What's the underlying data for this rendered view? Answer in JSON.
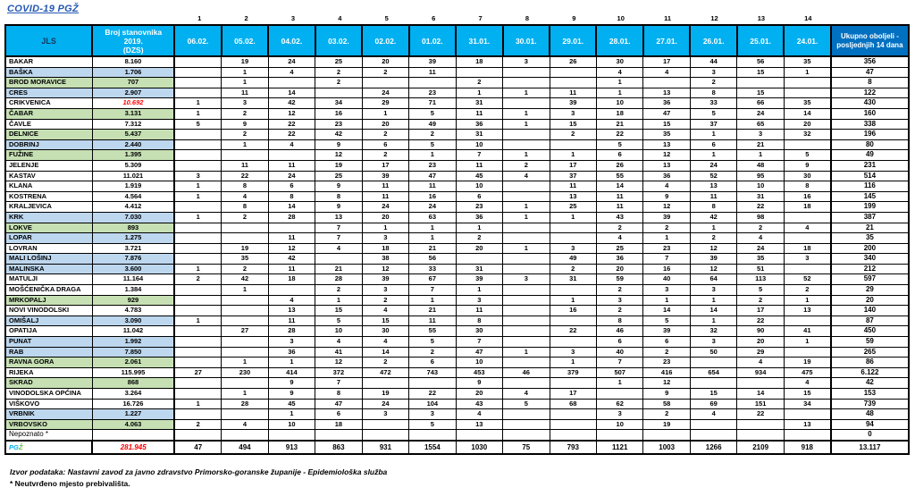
{
  "title": "COVID-19  PGŽ",
  "colors": {
    "header_bg": "#00b0f0",
    "header_total_bg": "#0070c0",
    "row_blue": "#bdd7ee",
    "row_green": "#c6e0b4",
    "red": "#ff0000",
    "title_color": "#2458b3",
    "jls_text": "#17375e",
    "pgz_blue": "#00aeef",
    "pgz_green": "#6cbe45"
  },
  "header": {
    "jls": "JLS",
    "population_lines": [
      "Broj stanovnika",
      "2019.",
      "(DZS)"
    ],
    "day_numbers": [
      "1",
      "2",
      "3",
      "4",
      "5",
      "6",
      "7",
      "8",
      "9",
      "10",
      "11",
      "12",
      "13",
      "14"
    ],
    "dates": [
      "06.02.",
      "05.02.",
      "04.02.",
      "03.02.",
      "02.02.",
      "01.02.",
      "31.01.",
      "30.01.",
      "29.01.",
      "28.01.",
      "27.01.",
      "26.01.",
      "25.01.",
      "24.01."
    ],
    "total_label": "Ukupno oboljeli - posljednjih 14 dana"
  },
  "rows": [
    {
      "name": "BAKAR",
      "pop": "8.160",
      "shade": "w",
      "values": [
        "",
        "19",
        "24",
        "25",
        "20",
        "39",
        "18",
        "3",
        "26",
        "30",
        "17",
        "44",
        "56",
        "35"
      ],
      "total": "356"
    },
    {
      "name": "BAŠKA",
      "pop": "1.706",
      "shade": "b",
      "values": [
        "",
        "1",
        "4",
        "2",
        "2",
        "11",
        "",
        "",
        "",
        "4",
        "4",
        "3",
        "15",
        "1"
      ],
      "total": "47"
    },
    {
      "name": "BROD MORAVICE",
      "pop": "707",
      "shade": "g",
      "values": [
        "",
        "1",
        "",
        "2",
        "",
        "",
        "2",
        "",
        "",
        "1",
        "",
        "2",
        "",
        ""
      ],
      "total": "8"
    },
    {
      "name": "CRES",
      "pop": "2.907",
      "shade": "b",
      "values": [
        "",
        "11",
        "14",
        "",
        "24",
        "23",
        "1",
        "1",
        "11",
        "1",
        "13",
        "8",
        "15",
        ""
      ],
      "total": "122"
    },
    {
      "name": "CRIKVENICA",
      "pop": "10.692",
      "shade": "w",
      "pop_red": true,
      "values": [
        "1",
        "3",
        "42",
        "34",
        "29",
        "71",
        "31",
        "",
        "39",
        "10",
        "36",
        "33",
        "66",
        "35"
      ],
      "total": "430"
    },
    {
      "name": "ČABAR",
      "pop": "3.131",
      "shade": "g",
      "values": [
        "1",
        "2",
        "12",
        "16",
        "1",
        "5",
        "11",
        "1",
        "3",
        "18",
        "47",
        "5",
        "24",
        "14"
      ],
      "total": "160"
    },
    {
      "name": "ČAVLE",
      "pop": "7.312",
      "shade": "w",
      "values": [
        "5",
        "9",
        "22",
        "23",
        "20",
        "49",
        "36",
        "1",
        "15",
        "21",
        "15",
        "37",
        "65",
        "20"
      ],
      "total": "338"
    },
    {
      "name": "DELNICE",
      "pop": "5.437",
      "shade": "g",
      "values": [
        "",
        "2",
        "22",
        "42",
        "2",
        "2",
        "31",
        "",
        "2",
        "22",
        "35",
        "1",
        "3",
        "32"
      ],
      "total": "196"
    },
    {
      "name": "DOBRINJ",
      "pop": "2.440",
      "shade": "b",
      "values": [
        "",
        "1",
        "4",
        "9",
        "6",
        "5",
        "10",
        "",
        "",
        "5",
        "13",
        "6",
        "21",
        ""
      ],
      "total": "80"
    },
    {
      "name": "FUŽINE",
      "pop": "1.395",
      "shade": "g",
      "values": [
        "",
        "",
        "",
        "12",
        "2",
        "1",
        "7",
        "1",
        "1",
        "6",
        "12",
        "1",
        "1",
        "5"
      ],
      "total": "49"
    },
    {
      "name": "JELENJE",
      "pop": "5.309",
      "shade": "w",
      "values": [
        "",
        "11",
        "11",
        "19",
        "17",
        "23",
        "11",
        "2",
        "17",
        "26",
        "13",
        "24",
        "48",
        "9"
      ],
      "total": "231"
    },
    {
      "name": "KASTAV",
      "pop": "11.021",
      "shade": "w",
      "values": [
        "3",
        "22",
        "24",
        "25",
        "39",
        "47",
        "45",
        "4",
        "37",
        "55",
        "36",
        "52",
        "95",
        "30"
      ],
      "total": "514"
    },
    {
      "name": "KLANA",
      "pop": "1.919",
      "shade": "w",
      "values": [
        "1",
        "8",
        "6",
        "9",
        "11",
        "11",
        "10",
        "",
        "11",
        "14",
        "4",
        "13",
        "10",
        "8"
      ],
      "total": "116"
    },
    {
      "name": "KOSTRENA",
      "pop": "4.564",
      "shade": "w",
      "values": [
        "1",
        "4",
        "8",
        "8",
        "11",
        "16",
        "6",
        "",
        "13",
        "11",
        "9",
        "11",
        "31",
        "16"
      ],
      "total": "145"
    },
    {
      "name": "KRALJEVICA",
      "pop": "4.412",
      "shade": "w",
      "values": [
        "",
        "8",
        "14",
        "9",
        "24",
        "24",
        "23",
        "1",
        "25",
        "11",
        "12",
        "8",
        "22",
        "18"
      ],
      "total": "199"
    },
    {
      "name": "KRK",
      "pop": "7.030",
      "shade": "b",
      "values": [
        "1",
        "2",
        "28",
        "13",
        "20",
        "63",
        "36",
        "1",
        "1",
        "43",
        "39",
        "42",
        "98",
        ""
      ],
      "total": "387"
    },
    {
      "name": "LOKVE",
      "pop": "893",
      "shade": "g",
      "values": [
        "",
        "",
        "",
        "7",
        "1",
        "1",
        "1",
        "",
        "",
        "2",
        "2",
        "1",
        "2",
        "4"
      ],
      "total": "21"
    },
    {
      "name": "LOPAR",
      "pop": "1.275",
      "shade": "b",
      "values": [
        "",
        "",
        "11",
        "7",
        "3",
        "1",
        "2",
        "",
        "",
        "4",
        "1",
        "2",
        "4",
        ""
      ],
      "total": "35"
    },
    {
      "name": "LOVRAN",
      "pop": "3.721",
      "shade": "w",
      "values": [
        "",
        "19",
        "12",
        "4",
        "18",
        "21",
        "20",
        "1",
        "3",
        "25",
        "23",
        "12",
        "24",
        "18"
      ],
      "total": "200"
    },
    {
      "name": "MALI LOŠINJ",
      "pop": "7.876",
      "shade": "b",
      "values": [
        "",
        "35",
        "42",
        "",
        "38",
        "56",
        "",
        "",
        "49",
        "36",
        "7",
        "39",
        "35",
        "3"
      ],
      "total": "340"
    },
    {
      "name": "MALINSKA",
      "pop": "3.600",
      "shade": "b",
      "values": [
        "1",
        "2",
        "11",
        "21",
        "12",
        "33",
        "31",
        "",
        "2",
        "20",
        "16",
        "12",
        "51",
        ""
      ],
      "total": "212"
    },
    {
      "name": "MATULJI",
      "pop": "11.164",
      "shade": "w",
      "values": [
        "2",
        "42",
        "18",
        "28",
        "39",
        "67",
        "39",
        "3",
        "31",
        "59",
        "40",
        "64",
        "113",
        "52"
      ],
      "total": "597"
    },
    {
      "name": "MOŠĆENIČKA DRAGA",
      "pop": "1.384",
      "shade": "w",
      "values": [
        "",
        "1",
        "",
        "2",
        "3",
        "7",
        "1",
        "",
        "",
        "2",
        "3",
        "3",
        "5",
        "2"
      ],
      "total": "29"
    },
    {
      "name": "MRKOPALJ",
      "pop": "929",
      "shade": "g",
      "values": [
        "",
        "",
        "4",
        "1",
        "2",
        "1",
        "3",
        "",
        "1",
        "3",
        "1",
        "1",
        "2",
        "1"
      ],
      "total": "20"
    },
    {
      "name": "NOVI VINODOLSKI",
      "pop": "4.783",
      "shade": "w",
      "values": [
        "",
        "",
        "13",
        "15",
        "4",
        "21",
        "11",
        "",
        "16",
        "2",
        "14",
        "14",
        "17",
        "13"
      ],
      "total": "140"
    },
    {
      "name": "OMIŠALJ",
      "pop": "3.090",
      "shade": "b",
      "values": [
        "1",
        "",
        "11",
        "5",
        "15",
        "11",
        "8",
        "",
        "",
        "8",
        "5",
        "1",
        "22",
        ""
      ],
      "total": "87"
    },
    {
      "name": "OPATIJA",
      "pop": "11.042",
      "shade": "w",
      "values": [
        "",
        "27",
        "28",
        "10",
        "30",
        "55",
        "30",
        "",
        "22",
        "46",
        "39",
        "32",
        "90",
        "41"
      ],
      "total": "450"
    },
    {
      "name": "PUNAT",
      "pop": "1.992",
      "shade": "b",
      "values": [
        "",
        "",
        "3",
        "4",
        "4",
        "5",
        "7",
        "",
        "",
        "6",
        "6",
        "3",
        "20",
        "1"
      ],
      "total": "59"
    },
    {
      "name": "RAB",
      "pop": "7.850",
      "shade": "b",
      "values": [
        "",
        "",
        "36",
        "41",
        "14",
        "2",
        "47",
        "1",
        "3",
        "40",
        "2",
        "50",
        "29",
        ""
      ],
      "total": "265"
    },
    {
      "name": "RAVNA GORA",
      "pop": "2.061",
      "shade": "g",
      "values": [
        "",
        "1",
        "1",
        "12",
        "2",
        "6",
        "10",
        "",
        "1",
        "7",
        "23",
        "",
        "4",
        "19"
      ],
      "total": "86"
    },
    {
      "name": "RIJEKA",
      "pop": "115.995",
      "shade": "w",
      "values": [
        "27",
        "230",
        "414",
        "372",
        "472",
        "743",
        "453",
        "46",
        "379",
        "507",
        "416",
        "654",
        "934",
        "475"
      ],
      "total": "6.122"
    },
    {
      "name": "SKRAD",
      "pop": "868",
      "shade": "g",
      "values": [
        "",
        "",
        "9",
        "7",
        "",
        "",
        "9",
        "",
        "",
        "1",
        "12",
        "",
        "",
        "4"
      ],
      "total": "42"
    },
    {
      "name": "VINODOLSKA OPĆINA",
      "pop": "3.264",
      "shade": "w",
      "values": [
        "",
        "1",
        "9",
        "8",
        "19",
        "22",
        "20",
        "4",
        "17",
        "",
        "9",
        "15",
        "14",
        "15"
      ],
      "total": "153"
    },
    {
      "name": "VIŠKOVO",
      "pop": "16.726",
      "shade": "w",
      "values": [
        "1",
        "28",
        "45",
        "47",
        "24",
        "104",
        "43",
        "5",
        "68",
        "62",
        "58",
        "69",
        "151",
        "34"
      ],
      "total": "739"
    },
    {
      "name": "VRBNIK",
      "pop": "1.227",
      "shade": "b",
      "values": [
        "",
        "",
        "1",
        "6",
        "3",
        "3",
        "4",
        "",
        "",
        "3",
        "2",
        "4",
        "22",
        ""
      ],
      "total": "48"
    },
    {
      "name": "VRBOVSKO",
      "pop": "4.063",
      "shade": "g",
      "values": [
        "2",
        "4",
        "10",
        "18",
        "",
        "5",
        "13",
        "",
        "",
        "10",
        "19",
        "",
        "",
        "13"
      ],
      "total": "94"
    },
    {
      "name": "Nepoznato *",
      "pop": "",
      "shade": "w",
      "plain": true,
      "values": [
        "",
        "",
        "",
        "",
        "",
        "",
        "",
        "",
        "",
        "",
        "",
        "",
        "",
        ""
      ],
      "total": "0"
    }
  ],
  "total_row": {
    "name_parts": [
      {
        "text": "PG",
        "color_key": "pgz_blue"
      },
      {
        "text": "Ž",
        "color_key": "pgz_green"
      }
    ],
    "pop": "281.945",
    "values": [
      "47",
      "494",
      "913",
      "863",
      "931",
      "1554",
      "1030",
      "75",
      "793",
      "1121",
      "1003",
      "1266",
      "2109",
      "918"
    ],
    "total": "13.117"
  },
  "footer": {
    "source": "Izvor podataka: Nastavni zavod za javno zdravstvo Primorsko-goranske županije  - Epidemiološka služba",
    "note": "* Neutvrđeno mjesto prebivališta."
  }
}
